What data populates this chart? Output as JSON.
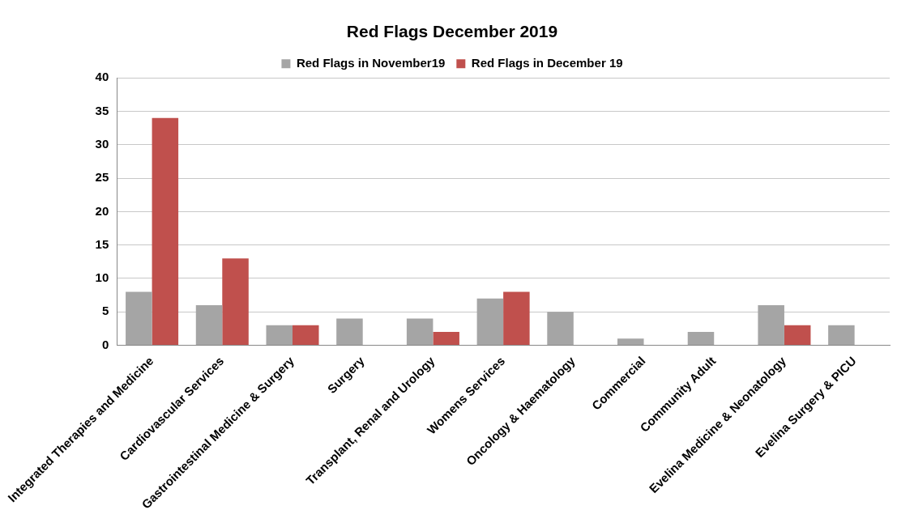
{
  "chart_data": {
    "type": "bar",
    "title": "Red Flags December 2019",
    "categories": [
      "Integrated Therapies and Medicine",
      "Cardiovascular Services",
      "Gastrointestinal Medicine & Surgery",
      "Surgery",
      "Transplant, Renal and Urology",
      "Womens Services",
      "Oncology & Haematology",
      "Commercial",
      "Community Adult",
      "Evelina Medicine & Neonatology",
      "Evelina Surgery & PICU"
    ],
    "series": [
      {
        "name": "Red Flags in November19",
        "color": "#a5a5a5",
        "values": [
          8,
          6,
          3,
          4,
          4,
          7,
          5,
          1,
          2,
          6,
          3
        ]
      },
      {
        "name": "Red Flags in December 19",
        "color": "#c0504d",
        "values": [
          34,
          13,
          3,
          0,
          2,
          8,
          0,
          0,
          0,
          3,
          0
        ]
      }
    ],
    "ylim": [
      0,
      40
    ],
    "yticks": [
      0,
      5,
      10,
      15,
      20,
      25,
      30,
      35,
      40
    ],
    "grid": "y",
    "legend": "top"
  }
}
